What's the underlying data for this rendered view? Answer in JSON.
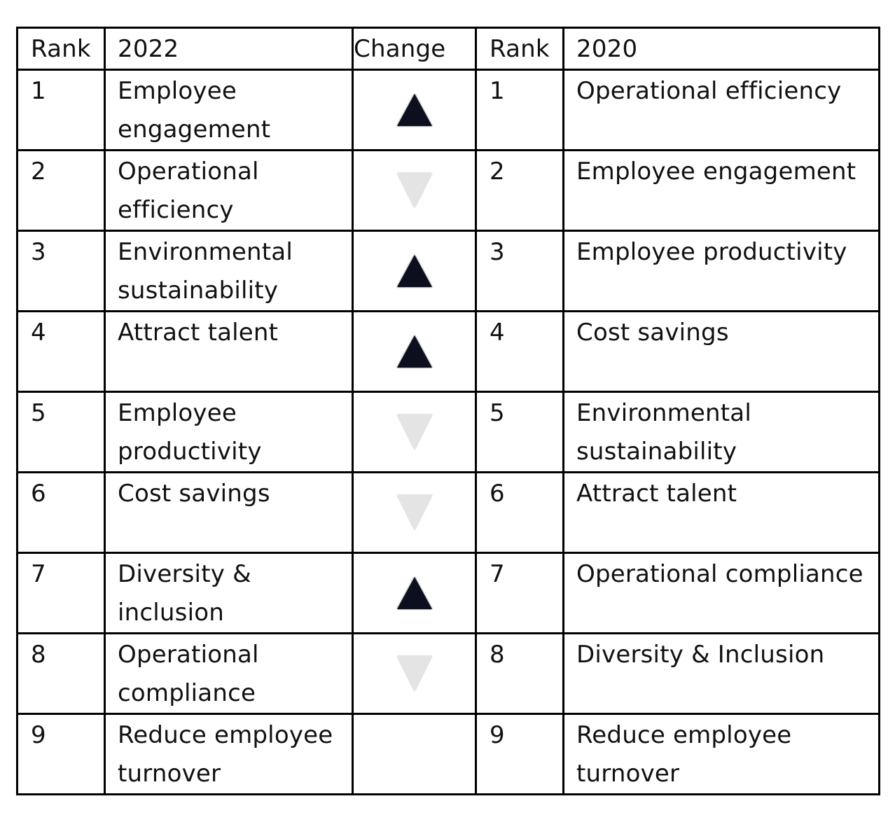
{
  "headers": {
    "rank_a": "Rank",
    "year_a": "2022",
    "change": "Change",
    "rank_b": "Rank",
    "year_b": "2020"
  },
  "colors": {
    "up": "#0b0f1e",
    "down": "#e4e4e4"
  },
  "rows": [
    {
      "rank_a": "1",
      "item_2022": "Employee engagement",
      "change": "up",
      "rank_b": "1",
      "item_2020": "Operational efficiency"
    },
    {
      "rank_a": "2",
      "item_2022": "Operational efficiency",
      "change": "down",
      "rank_b": "2",
      "item_2020": "Employee engagement"
    },
    {
      "rank_a": "3",
      "item_2022": "Environmental sustainability",
      "change": "up",
      "rank_b": "3",
      "item_2020": "Employee productivity"
    },
    {
      "rank_a": "4",
      "item_2022": "Attract talent",
      "change": "up",
      "rank_b": "4",
      "item_2020": "Cost savings"
    },
    {
      "rank_a": "5",
      "item_2022": "Employee productivity",
      "change": "down",
      "rank_b": "5",
      "item_2020": "Environmental sustainability"
    },
    {
      "rank_a": "6",
      "item_2022": "Cost savings",
      "change": "down",
      "rank_b": "6",
      "item_2020": "Attract talent"
    },
    {
      "rank_a": "7",
      "item_2022": "Diversity & inclusion",
      "change": "up",
      "rank_b": "7",
      "item_2020": "Operational compliance"
    },
    {
      "rank_a": "8",
      "item_2022": "Operational compliance",
      "change": "down",
      "rank_b": "8",
      "item_2020": "Diversity & Inclusion"
    },
    {
      "rank_a": "9",
      "item_2022": "Reduce employee turnover",
      "change": "",
      "rank_b": "9",
      "item_2020": "Reduce employee turnover"
    }
  ]
}
